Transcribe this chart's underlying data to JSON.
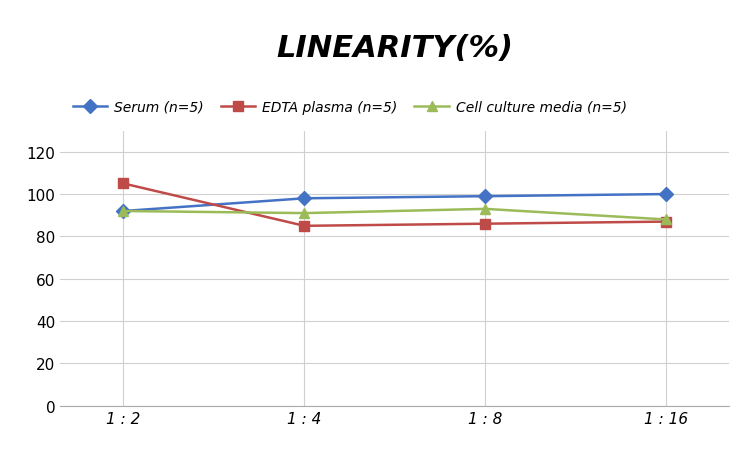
{
  "title": "LINEARITY(%)",
  "x_labels": [
    "1 : 2",
    "1 : 4",
    "1 : 8",
    "1 : 16"
  ],
  "x_positions": [
    0,
    1,
    2,
    3
  ],
  "series": [
    {
      "label": "Serum (n=5)",
      "values": [
        92,
        98,
        99,
        100
      ],
      "color": "#4472C4",
      "marker": "D",
      "markersize": 7,
      "linewidth": 1.8
    },
    {
      "label": "EDTA plasma (n=5)",
      "values": [
        105,
        85,
        86,
        87
      ],
      "color": "#BE4B48",
      "marker": "s",
      "markersize": 7,
      "linewidth": 1.8
    },
    {
      "label": "Cell culture media (n=5)",
      "values": [
        92,
        91,
        93,
        88
      ],
      "color": "#9BBB59",
      "marker": "^",
      "markersize": 7,
      "linewidth": 1.8
    }
  ],
  "ylim": [
    0,
    130
  ],
  "yticks": [
    0,
    20,
    40,
    60,
    80,
    100,
    120
  ],
  "background_color": "#FFFFFF",
  "grid_color": "#D0D0D0",
  "title_fontsize": 22,
  "legend_fontsize": 10,
  "tick_fontsize": 11
}
